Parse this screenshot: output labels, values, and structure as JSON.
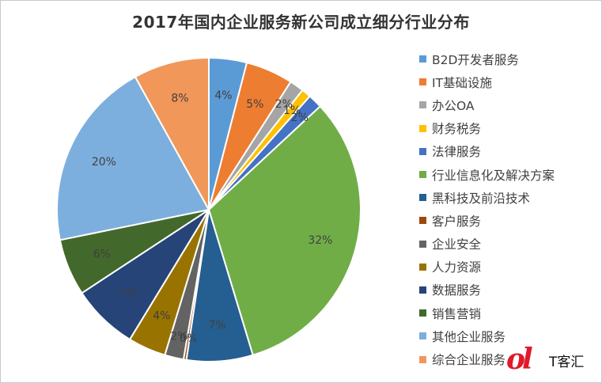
{
  "chart_data": {
    "type": "pie",
    "title": "2017年国内企业服务新公司成立细分行业分布",
    "legend_position": "right",
    "slices": [
      {
        "name": "B2D开发者服务",
        "value": 4,
        "label": "4%",
        "color": "#5b9bd5"
      },
      {
        "name": "IT基础设施",
        "value": 5,
        "label": "5%",
        "color": "#ed7d31"
      },
      {
        "name": "办公OA",
        "value": 1.5,
        "label": "2%",
        "color": "#a5a5a5"
      },
      {
        "name": "财务税务",
        "value": 1,
        "label": "1%",
        "color": "#ffc000"
      },
      {
        "name": "法律服务",
        "value": 1.5,
        "label": "2%",
        "color": "#4472c4"
      },
      {
        "name": "行业信息化及解决方案",
        "value": 32,
        "label": "32%",
        "color": "#70ad47"
      },
      {
        "name": "黑科技及前沿技术",
        "value": 7,
        "label": "7%",
        "color": "#255e91"
      },
      {
        "name": "客户服务",
        "value": 0.3,
        "label": "0%",
        "color": "#9e480e"
      },
      {
        "name": "企业安全",
        "value": 2,
        "label": "2%",
        "color": "#636363"
      },
      {
        "name": "人力资源",
        "value": 4,
        "label": "4%",
        "color": "#997300"
      },
      {
        "name": "数据服务",
        "value": 7,
        "label": "7%",
        "color": "#264478"
      },
      {
        "name": "销售营销",
        "value": 6,
        "label": "6%",
        "color": "#43682b"
      },
      {
        "name": "其他企业服务",
        "value": 20,
        "label": "20%",
        "color": "#7cafdd"
      },
      {
        "name": "综合企业服务",
        "value": 8,
        "label": "8%",
        "color": "#f1975a"
      }
    ]
  },
  "watermark": {
    "glyph": "ol",
    "text": "T客汇"
  }
}
